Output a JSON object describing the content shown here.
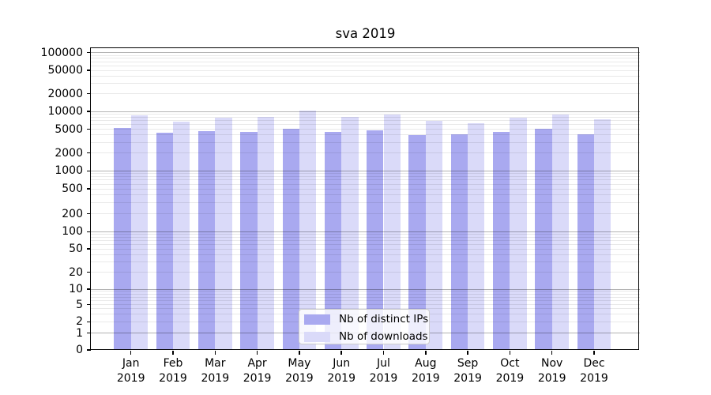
{
  "chart_data": {
    "type": "bar",
    "title": "sva 2019",
    "xlabel": "",
    "ylabel": "",
    "yscale": "symlog",
    "ylim": [
      0,
      100000
    ],
    "grid": true,
    "legend_position": "lower center",
    "yticks": [
      0,
      1,
      2,
      5,
      10,
      20,
      50,
      100,
      200,
      500,
      1000,
      2000,
      5000,
      10000,
      20000,
      50000,
      100000
    ],
    "categories": [
      "Jan 2019",
      "Feb 2019",
      "Mar 2019",
      "Apr 2019",
      "May 2019",
      "Jun 2019",
      "Jul 2019",
      "Aug 2019",
      "Sep 2019",
      "Oct 2019",
      "Nov 2019",
      "Dec 2019"
    ],
    "series": [
      {
        "name": "Nb of distinct IPs",
        "color": "#a9a9f0",
        "values": [
          5200,
          4400,
          4700,
          4500,
          5100,
          4500,
          4850,
          3950,
          4080,
          4550,
          5150,
          4100
        ]
      },
      {
        "name": "Nb of downloads",
        "color": "#dadaf9",
        "values": [
          8600,
          6700,
          7850,
          8000,
          10200,
          8150,
          8800,
          6900,
          6400,
          7850,
          8900,
          7300
        ]
      }
    ]
  }
}
